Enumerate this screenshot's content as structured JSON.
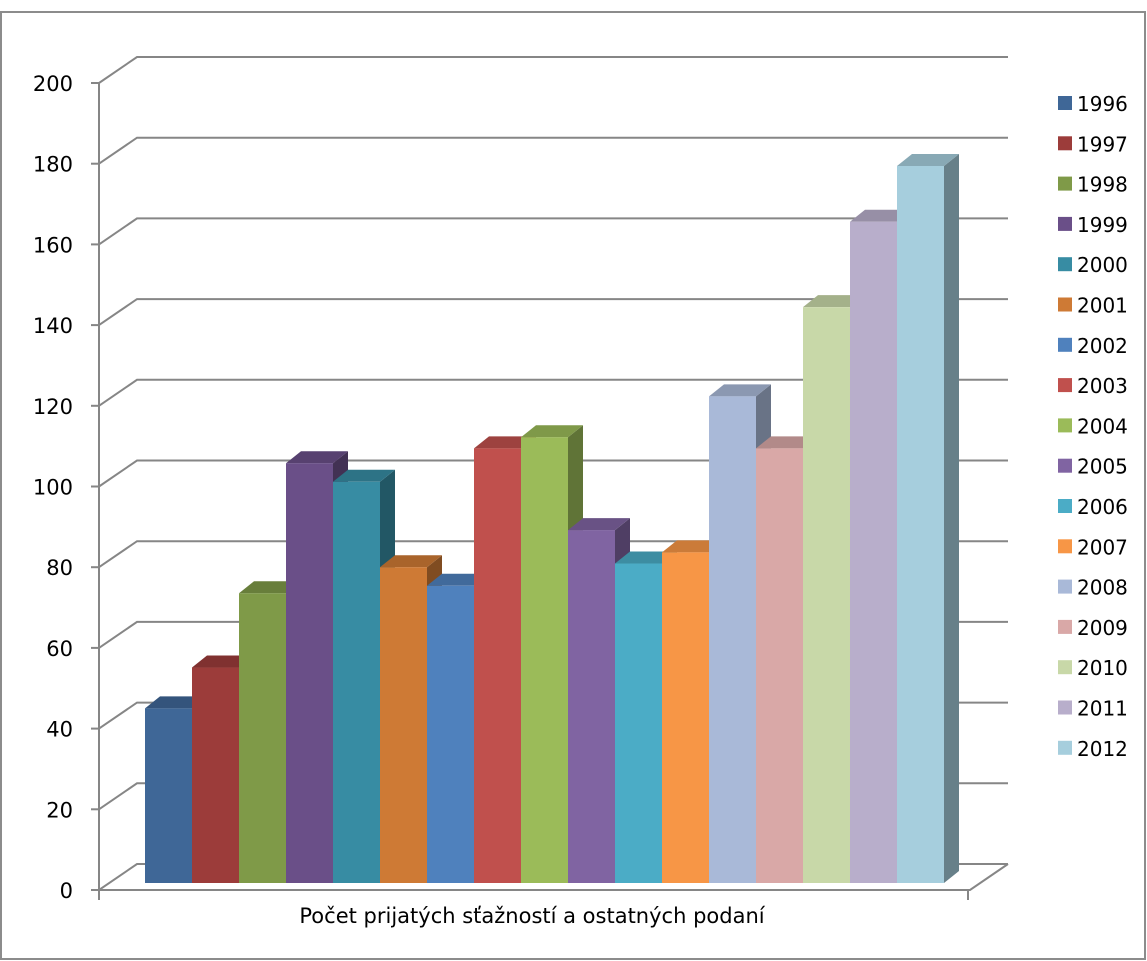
{
  "chart_data": {
    "type": "bar",
    "categories": [
      "Počet prijatých sťažností a ostatných podaní"
    ],
    "xlabel": "Počet prijatých sťažností a ostatných podaní",
    "ylabel": "",
    "ylim": [
      0,
      200
    ],
    "yticks": [
      "0",
      "20",
      "40",
      "60",
      "80",
      "100",
      "120",
      "140",
      "160",
      "180",
      "200"
    ],
    "grid": true,
    "legend_position": "right",
    "three_d": true,
    "series": [
      {
        "name": "1996",
        "values": [
          47
        ],
        "color": "#3F6797"
      },
      {
        "name": "1997",
        "values": [
          58
        ],
        "color": "#9C3C3A"
      },
      {
        "name": "1998",
        "values": [
          78
        ],
        "color": "#7F9A48"
      },
      {
        "name": "1999",
        "values": [
          113
        ],
        "color": "#6A4F88"
      },
      {
        "name": "2000",
        "values": [
          108
        ],
        "color": "#378CA3"
      },
      {
        "name": "2001",
        "values": [
          85
        ],
        "color": "#CE7A35"
      },
      {
        "name": "2002",
        "values": [
          80
        ],
        "color": "#4F81BD"
      },
      {
        "name": "2003",
        "values": [
          117
        ],
        "color": "#C0504D"
      },
      {
        "name": "2004",
        "values": [
          120
        ],
        "color": "#9BBB59"
      },
      {
        "name": "2005",
        "values": [
          95
        ],
        "color": "#8064A2"
      },
      {
        "name": "2006",
        "values": [
          86
        ],
        "color": "#4BACC6"
      },
      {
        "name": "2007",
        "values": [
          89
        ],
        "color": "#F79646"
      },
      {
        "name": "2008",
        "values": [
          131
        ],
        "color": "#A9B9D8"
      },
      {
        "name": "2009",
        "values": [
          117
        ],
        "color": "#D9A8A7"
      },
      {
        "name": "2010",
        "values": [
          155
        ],
        "color": "#C8D8A8"
      },
      {
        "name": "2011",
        "values": [
          178
        ],
        "color": "#B8AECB"
      },
      {
        "name": "2012",
        "values": [
          193
        ],
        "color": "#A6CEDD"
      }
    ]
  }
}
